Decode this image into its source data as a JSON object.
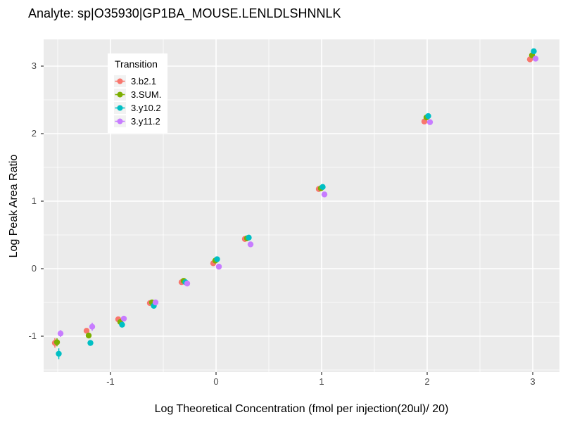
{
  "chart_data": {
    "type": "scatter",
    "title": "Analyte: sp|O35930|GP1BA_MOUSE.LENLDLSHNNLK",
    "xlabel": "Log Theoretical Concentration (fmol per injection(20ul)/ 20)",
    "ylabel": "Log Peak Area Ratio",
    "panel_bg": "#EBEBEB",
    "grid_color": "#FFFFFF",
    "tick_color": "#333333",
    "tick_label_color": "#4D4D4D",
    "grid": true,
    "xlim": [
      -1.63,
      3.25
    ],
    "ylim": [
      -1.53,
      3.4
    ],
    "x_ticks": [
      -1,
      0,
      1,
      2,
      3
    ],
    "y_ticks": [
      -1,
      0,
      1,
      2,
      3
    ],
    "x_minor": [
      -1.5,
      -0.5,
      0.5,
      1.5,
      2.5
    ],
    "y_minor": [
      -1.5,
      -0.5,
      0.5,
      1.5,
      2.5
    ],
    "x": [
      -1.5,
      -1.2,
      -0.9,
      -0.6,
      -0.3,
      0,
      0.3,
      1,
      2,
      3
    ],
    "legend": {
      "title": "Transition",
      "position": "inside-top-left"
    },
    "series": [
      {
        "name": "3.b2.1",
        "color": "#F8766D",
        "y": [
          -1.1,
          -0.92,
          -0.75,
          -0.51,
          -0.2,
          0.08,
          0.44,
          1.18,
          2.18,
          3.1
        ],
        "err": [
          0.07,
          0.02,
          0.02,
          0.01,
          0.01,
          0.01,
          0.01,
          0.01,
          0.01,
          0.01
        ]
      },
      {
        "name": "3.SUM.",
        "color": "#7CAE00",
        "y": [
          -1.09,
          -0.99,
          -0.79,
          -0.5,
          -0.18,
          0.12,
          0.45,
          1.19,
          2.24,
          3.16
        ],
        "err": [
          0.06,
          0.02,
          0.02,
          0.01,
          0.01,
          0.01,
          0.01,
          0.01,
          0.01,
          0.01
        ]
      },
      {
        "name": "3.y10.2",
        "color": "#00BFC4",
        "y": [
          -1.26,
          -1.1,
          -0.83,
          -0.55,
          -0.2,
          0.14,
          0.46,
          1.21,
          2.26,
          3.22
        ],
        "err": [
          0.08,
          0.02,
          0.02,
          0.01,
          0.01,
          0.01,
          0.01,
          0.01,
          0.01,
          0.01
        ]
      },
      {
        "name": "3.y11.2",
        "color": "#C77CFF",
        "y": [
          -0.96,
          -0.86,
          -0.74,
          -0.5,
          -0.22,
          0.03,
          0.36,
          1.1,
          2.17,
          3.11
        ],
        "err": [
          0.05,
          0.06,
          0.04,
          0.01,
          0.01,
          0.02,
          0.03,
          0.01,
          0.01,
          0.01
        ]
      }
    ]
  }
}
